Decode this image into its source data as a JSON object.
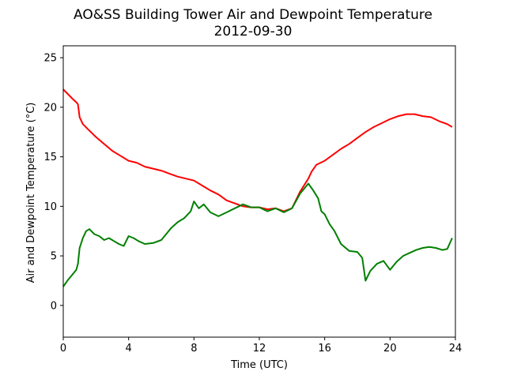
{
  "chart_data": {
    "type": "line",
    "title": "AO&SS Building Tower Air and Dewpoint Temperature",
    "subtitle": "2012-09-30",
    "xlabel": "Time (UTC)",
    "ylabel": "Air and Dewpoint Temperature (°C)",
    "xlim": [
      0,
      24
    ],
    "ylim": [
      -3.2,
      26.2
    ],
    "xticks": [
      0,
      4,
      8,
      12,
      16,
      20,
      24
    ],
    "yticks": [
      0,
      5,
      10,
      15,
      20,
      25
    ],
    "grid": false,
    "legend": "none",
    "series": [
      {
        "color": "#ff0000",
        "x": [
          0.0,
          0.3,
          0.6,
          0.8,
          0.9,
          1.0,
          1.2,
          1.5,
          2.0,
          2.5,
          3.0,
          3.5,
          4.0,
          4.5,
          5.0,
          5.5,
          6.0,
          6.5,
          7.0,
          7.5,
          8.0,
          8.5,
          9.0,
          9.5,
          10.0,
          10.5,
          11.0,
          11.5,
          12.0,
          12.5,
          13.0,
          13.5,
          14.0,
          14.5,
          15.0,
          15.2,
          15.5,
          16.0,
          16.5,
          17.0,
          17.5,
          18.0,
          18.5,
          19.0,
          19.5,
          20.0,
          20.5,
          21.0,
          21.5,
          22.0,
          22.5,
          23.0,
          23.5,
          23.8
        ],
        "y": [
          21.8,
          21.3,
          20.8,
          20.5,
          20.3,
          19.0,
          18.3,
          17.8,
          17.0,
          16.3,
          15.6,
          15.1,
          14.6,
          14.4,
          14.0,
          13.8,
          13.6,
          13.3,
          13.0,
          12.8,
          12.6,
          12.1,
          11.6,
          11.2,
          10.6,
          10.3,
          10.0,
          9.9,
          9.9,
          9.7,
          9.8,
          9.5,
          9.8,
          11.5,
          12.8,
          13.5,
          14.2,
          14.6,
          15.2,
          15.8,
          16.3,
          16.9,
          17.5,
          18.0,
          18.4,
          18.8,
          19.1,
          19.3,
          19.3,
          19.1,
          19.0,
          18.6,
          18.3,
          18.0
        ]
      },
      {
        "color": "#008000",
        "x": [
          0.0,
          0.3,
          0.6,
          0.8,
          0.9,
          1.0,
          1.2,
          1.4,
          1.6,
          1.9,
          2.2,
          2.5,
          2.8,
          3.1,
          3.4,
          3.7,
          4.0,
          4.3,
          4.6,
          5.0,
          5.5,
          6.0,
          6.3,
          6.6,
          7.0,
          7.4,
          7.8,
          8.0,
          8.3,
          8.6,
          9.0,
          9.5,
          10.0,
          10.5,
          11.0,
          11.5,
          12.0,
          12.5,
          13.0,
          13.5,
          14.0,
          14.5,
          14.8,
          15.0,
          15.3,
          15.6,
          15.8,
          16.0,
          16.3,
          16.6,
          17.0,
          17.5,
          18.0,
          18.3,
          18.5,
          18.8,
          19.2,
          19.6,
          20.0,
          20.4,
          20.8,
          21.2,
          21.6,
          22.0,
          22.4,
          22.8,
          23.2,
          23.5,
          23.8
        ],
        "y": [
          1.9,
          2.6,
          3.2,
          3.6,
          4.2,
          5.8,
          6.8,
          7.5,
          7.7,
          7.2,
          7.0,
          6.6,
          6.8,
          6.5,
          6.2,
          6.0,
          7.0,
          6.8,
          6.5,
          6.2,
          6.3,
          6.6,
          7.2,
          7.8,
          8.4,
          8.8,
          9.5,
          10.5,
          9.8,
          10.2,
          9.4,
          9.0,
          9.4,
          9.8,
          10.2,
          9.9,
          9.9,
          9.5,
          9.8,
          9.4,
          9.8,
          11.3,
          11.9,
          12.3,
          11.6,
          10.8,
          9.5,
          9.2,
          8.2,
          7.5,
          6.2,
          5.5,
          5.4,
          4.8,
          2.5,
          3.5,
          4.2,
          4.5,
          3.6,
          4.4,
          5.0,
          5.3,
          5.6,
          5.8,
          5.9,
          5.8,
          5.6,
          5.7,
          6.8
        ]
      }
    ]
  }
}
